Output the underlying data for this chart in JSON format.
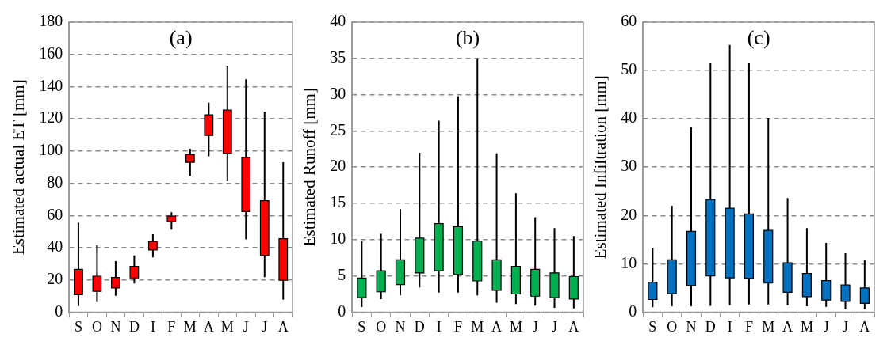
{
  "chart_data": [
    {
      "type": "candlestick",
      "title": "(a)",
      "ylabel": "Estimated actual ET [mm]",
      "categories": [
        "S",
        "O",
        "N",
        "D",
        "I",
        "F",
        "M",
        "A",
        "M",
        "J",
        "J",
        "A"
      ],
      "color": "#ff0000",
      "ylim": [
        0,
        180
      ],
      "yticks": [
        0,
        20,
        40,
        60,
        80,
        100,
        120,
        140,
        160,
        180
      ],
      "grid": "y",
      "ohlc": [
        [
          10.8,
          55.5,
          3.8,
          26.5
        ],
        [
          12.9,
          41.6,
          6.2,
          22.3
        ],
        [
          15,
          31.6,
          10.2,
          21.5
        ],
        [
          21.2,
          35.2,
          17.7,
          28.4
        ],
        [
          38.6,
          48.3,
          34,
          43.7
        ],
        [
          56.3,
          62,
          51.2,
          59.6
        ],
        [
          93,
          101.4,
          84.4,
          97.8
        ],
        [
          109.7,
          130,
          96.7,
          122.5
        ],
        [
          98.6,
          152.5,
          81.2,
          125.4
        ],
        [
          62.4,
          144.5,
          45.1,
          96
        ],
        [
          35.2,
          124.4,
          21.7,
          69.2
        ],
        [
          19.8,
          93,
          7.8,
          45.6
        ]
      ]
    },
    {
      "type": "candlestick",
      "title": "(b)",
      "ylabel": "Estimated Runoff [mm]",
      "categories": [
        "S",
        "O",
        "N",
        "D",
        "I",
        "F",
        "M",
        "A",
        "M",
        "J",
        "J",
        "A"
      ],
      "color": "#00b050",
      "ylim": [
        0,
        40
      ],
      "yticks": [
        0,
        5,
        10,
        15,
        20,
        25,
        30,
        35,
        40
      ],
      "grid": "y",
      "ohlc": [
        [
          2.0,
          9.8,
          0.7,
          4.7
        ],
        [
          2.8,
          10.8,
          1.8,
          5.7
        ],
        [
          3.8,
          14.2,
          2.3,
          7.2
        ],
        [
          5.4,
          22,
          3.4,
          10.2
        ],
        [
          5.7,
          26.4,
          2.7,
          12.2
        ],
        [
          5.2,
          29.8,
          2.7,
          11.8
        ],
        [
          4.3,
          35,
          2.3,
          9.8
        ],
        [
          3.0,
          21.9,
          1.3,
          7.2
        ],
        [
          2.5,
          16.4,
          1.1,
          6.3
        ],
        [
          2.2,
          13.1,
          0.9,
          5.9
        ],
        [
          2.0,
          11.6,
          0.6,
          5.4
        ],
        [
          1.8,
          10.5,
          0.5,
          4.9
        ]
      ]
    },
    {
      "type": "candlestick",
      "title": "(c)",
      "ylabel": "Estimated Infiltration [mm]",
      "categories": [
        "S",
        "O",
        "N",
        "D",
        "I",
        "F",
        "M",
        "A",
        "M",
        "J",
        "J",
        "A"
      ],
      "color": "#0070c0",
      "ylim": [
        0,
        60
      ],
      "yticks": [
        0,
        10,
        20,
        30,
        40,
        50,
        60
      ],
      "grid": "y",
      "ohlc": [
        [
          2.6,
          13.3,
          1.0,
          6.2
        ],
        [
          3.8,
          22,
          1.2,
          10.8
        ],
        [
          5.5,
          38.3,
          1.2,
          16.7
        ],
        [
          7.5,
          51.5,
          1.3,
          23.3
        ],
        [
          7.1,
          55.3,
          1.4,
          21.5
        ],
        [
          7.0,
          51.5,
          1.6,
          20.3
        ],
        [
          6.0,
          40.2,
          1.6,
          16.9
        ],
        [
          4.1,
          23.6,
          1.4,
          10.2
        ],
        [
          3.2,
          17.4,
          1.2,
          8.0
        ],
        [
          2.5,
          14.3,
          1.1,
          6.5
        ],
        [
          2.2,
          12.2,
          0.6,
          5.6
        ],
        [
          1.8,
          10.8,
          0.6,
          5.0
        ]
      ]
    }
  ]
}
